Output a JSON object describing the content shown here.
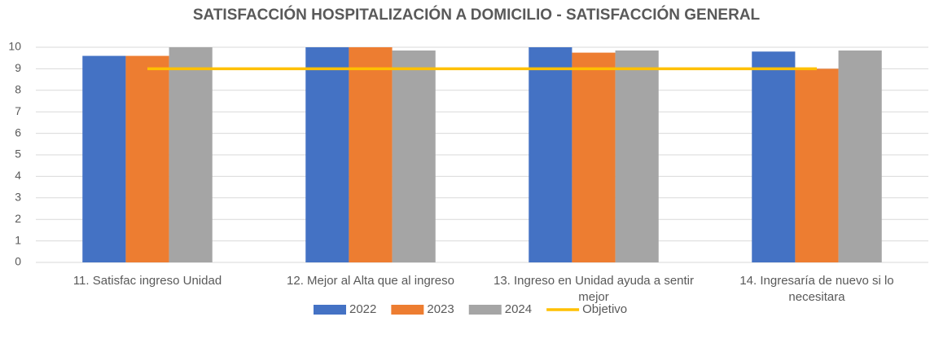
{
  "chart_data": {
    "type": "bar",
    "title": "SATISFACCIÓN HOSPITALIZACIÓN A DOMICILIO - SATISFACCIÓN GENERAL",
    "categories": [
      "11. Satisfac ingreso Unidad",
      "12. Mejor al Alta que al ingreso",
      "13. Ingreso en Unidad ayuda a sentir mejor",
      "14. Ingresaría de nuevo si lo necesitara"
    ],
    "series": [
      {
        "name": "2022",
        "color": "#4472c4",
        "values": [
          9.6,
          10,
          10,
          9.8
        ]
      },
      {
        "name": "2023",
        "color": "#ed7d31",
        "values": [
          9.6,
          10,
          9.75,
          9.0
        ]
      },
      {
        "name": "2024",
        "color": "#a5a5a5",
        "values": [
          10,
          9.85,
          9.85,
          9.85
        ]
      },
      {
        "name": "Objetivo",
        "color": "#ffc000",
        "type": "line",
        "values": [
          9,
          9,
          9,
          9
        ]
      }
    ],
    "ylim": [
      0,
      10
    ],
    "yticks": [
      0,
      1,
      2,
      3,
      4,
      5,
      6,
      7,
      8,
      9,
      10
    ],
    "grid": true
  }
}
